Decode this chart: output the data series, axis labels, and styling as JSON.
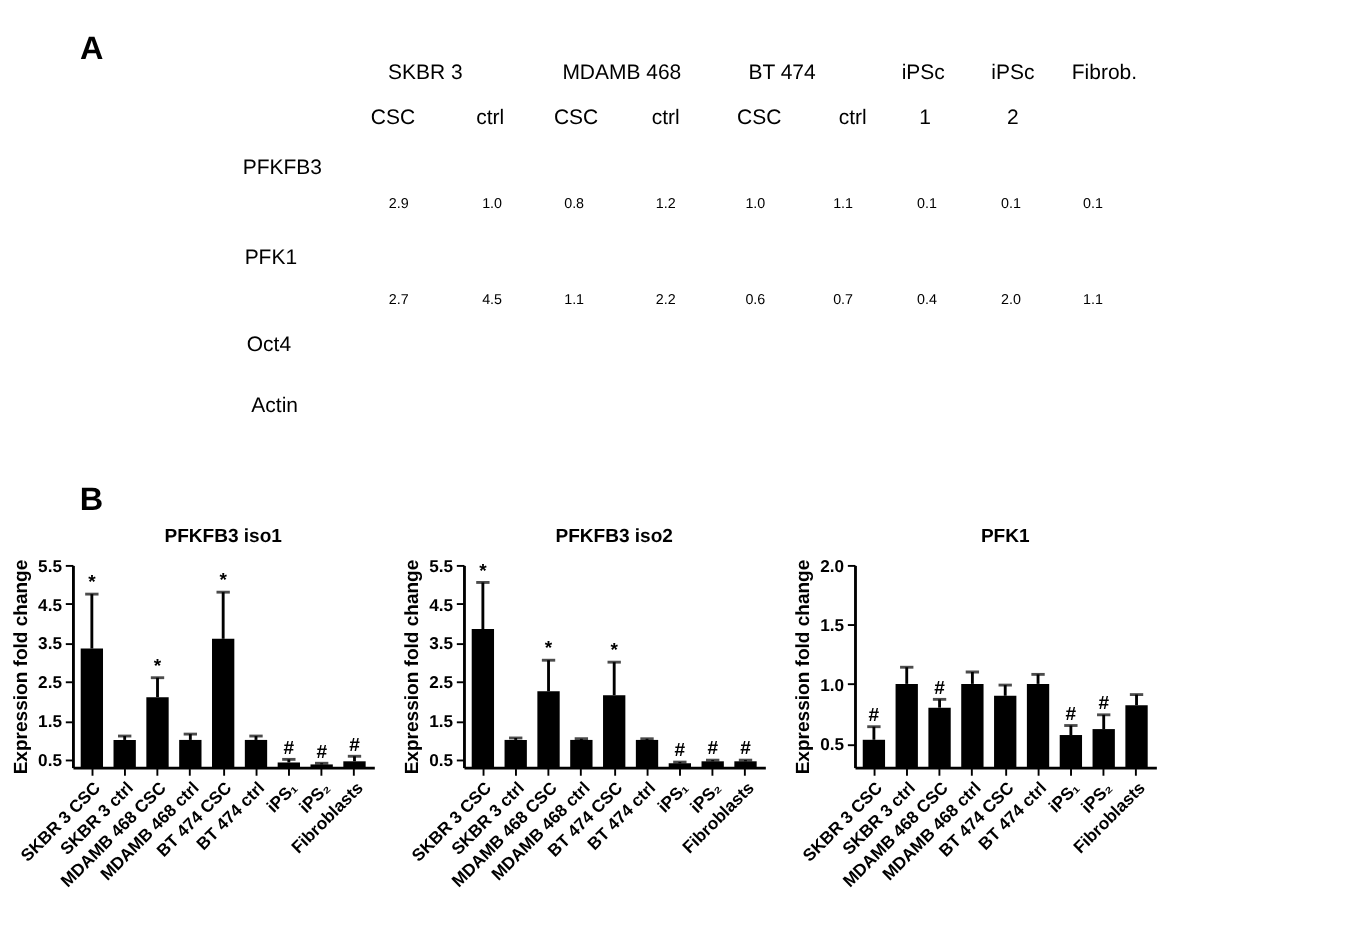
{
  "chart_data": [
    {
      "type": "other",
      "title": "A",
      "annotations": [
        "SKBR 3",
        "MDAMB 468",
        "BT 474",
        "iPSc",
        "iPSc",
        "Fibrob.",
        "CSC",
        "ctrl",
        "CSC",
        "ctrl",
        "CSC",
        "ctrl",
        "1",
        "2",
        "PFKFB3",
        "2.9",
        "1.0",
        "0.8",
        "1.2",
        "1.0",
        "1.1",
        "0.1",
        "0.1",
        "0.1",
        "PFK1",
        "2.7",
        "4.5",
        "1.1",
        "2.2",
        "0.6",
        "0.7",
        "0.4",
        "2.0",
        "1.1",
        "Oct4",
        "Actin",
        "B"
      ]
    },
    {
      "type": "bar",
      "title": "PFKFB3 iso1",
      "ylabel": "Expression fold change",
      "categories": [
        "SKBR 3 CSC",
        "SKBR 3 ctrl",
        "MDAMB 468 CSC",
        "MDAMB 468 ctrl",
        "BT 474 CSC",
        "BT 474 ctrl",
        "iPS₁",
        "iPS₂",
        "Fibroblasts"
      ],
      "values": [
        3.35,
        1.0,
        2.1,
        1.0,
        3.6,
        1.0,
        0.42,
        0.37,
        0.45
      ],
      "errors": [
        [
          3.35,
          4.75
        ],
        [
          1.0,
          1.1
        ],
        [
          2.1,
          2.6
        ],
        [
          1.0,
          1.15
        ],
        [
          3.6,
          4.8
        ],
        [
          1.0,
          1.1
        ],
        [
          0.42,
          0.5
        ],
        [
          0.37,
          0.4
        ],
        [
          0.45,
          0.58
        ]
      ],
      "color": "#000000",
      "ylim": [
        0.3,
        5.5
      ],
      "yticks": [
        0.5,
        1.5,
        2.5,
        3.5,
        4.5,
        5.5
      ],
      "grid": false,
      "annotations": [
        {
          "text": "*",
          "x": "SKBR 3 CSC",
          "y": 4.75
        },
        {
          "text": "*",
          "x": "MDAMB 468 CSC",
          "y": 2.6
        },
        {
          "text": "*",
          "x": "BT 474 CSC",
          "y": 4.8
        },
        {
          "text": "#",
          "x": "iPS₁",
          "y": 0.5
        },
        {
          "text": "#",
          "x": "iPS₂",
          "y": 0.4
        },
        {
          "text": "#",
          "x": "Fibroblasts",
          "y": 0.58
        }
      ]
    },
    {
      "type": "bar",
      "title": "PFKFB3 iso2",
      "ylabel": "Expression fold change",
      "categories": [
        "SKBR 3 CSC",
        "SKBR 3 ctrl",
        "MDAMB 468 CSC",
        "MDAMB 468 ctrl",
        "BT 474 CSC",
        "BT 474 ctrl",
        "iPS₁",
        "iPS₂",
        "Fibroblasts"
      ],
      "values": [
        3.85,
        1.0,
        2.25,
        1.0,
        2.15,
        1.0,
        0.4,
        0.45,
        0.45
      ],
      "errors": [
        [
          3.85,
          5.05
        ],
        [
          1.0,
          1.05
        ],
        [
          2.25,
          3.05
        ],
        [
          1.0,
          1.03
        ],
        [
          2.15,
          3.0
        ],
        [
          1.0,
          1.03
        ],
        [
          0.4,
          0.43
        ],
        [
          0.45,
          0.48
        ],
        [
          0.45,
          0.48
        ]
      ],
      "color": "#000000",
      "ylim": [
        0.3,
        5.5
      ],
      "yticks": [
        0.5,
        1.5,
        2.5,
        3.5,
        4.5,
        5.5
      ],
      "grid": false,
      "annotations": [
        {
          "text": "*",
          "x": "SKBR 3 CSC",
          "y": 5.05
        },
        {
          "text": "*",
          "x": "MDAMB 468 CSC",
          "y": 3.05
        },
        {
          "text": "*",
          "x": "BT 474 CSC",
          "y": 3.0
        },
        {
          "text": "#",
          "x": "iPS₁",
          "y": 0.43
        },
        {
          "text": "#",
          "x": "iPS₂",
          "y": 0.48
        },
        {
          "text": "#",
          "x": "Fibroblasts",
          "y": 0.48
        }
      ]
    },
    {
      "type": "bar",
      "title": "PFK1",
      "ylabel": "Expression fold change",
      "categories": [
        "SKBR 3 CSC",
        "SKBR 3 ctrl",
        "MDAMB 468 CSC",
        "MDAMB 468 ctrl",
        "BT 474 CSC",
        "BT 474 ctrl",
        "iPS₁",
        "iPS₂",
        "Fibroblasts"
      ],
      "values": [
        0.53,
        1.0,
        0.8,
        1.0,
        0.9,
        1.0,
        0.57,
        0.62,
        0.82
      ],
      "errors": [
        [
          0.53,
          0.64
        ],
        [
          1.0,
          1.14
        ],
        [
          0.8,
          0.87
        ],
        [
          1.0,
          1.1
        ],
        [
          0.9,
          0.99
        ],
        [
          1.0,
          1.08
        ],
        [
          0.57,
          0.65
        ],
        [
          0.62,
          0.74
        ],
        [
          0.82,
          0.91
        ]
      ],
      "color": "#000000",
      "ylim": [
        0.3,
        2.0
      ],
      "yticks": [
        0.5,
        {
          "value": 1.0,
          "label": "1.0"
        },
        1.5,
        {
          "value": 2.0,
          "label": "2.0"
        }
      ],
      "grid": false,
      "annotations": [
        {
          "text": "#",
          "x": "SKBR 3 CSC",
          "y": 0.64
        },
        {
          "text": "#",
          "x": "MDAMB 468 CSC",
          "y": 0.87
        },
        {
          "text": "#",
          "x": "iPS₁",
          "y": 0.65
        },
        {
          "text": "#",
          "x": "iPS₂",
          "y": 0.74
        }
      ]
    }
  ]
}
